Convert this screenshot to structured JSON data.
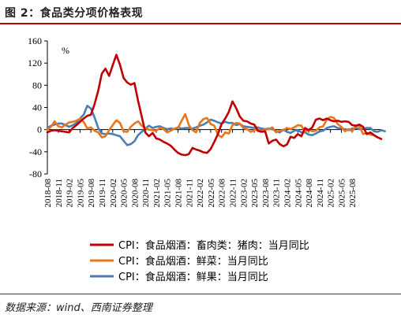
{
  "figure": {
    "title": "图 2：食品类分项价格表现",
    "source": "数据来源：wind、西南证券整理",
    "accent_color": "#c00000"
  },
  "chart_data": {
    "type": "line",
    "unit": "%",
    "ylim": [
      -80,
      160
    ],
    "yticks": [
      -80,
      -40,
      0,
      40,
      80,
      120,
      160
    ],
    "grid": false,
    "legend_position": "bottom",
    "x_tick_labels": [
      "2018-08",
      "2018-11",
      "2019-02",
      "2019-05",
      "2019-08",
      "2019-11",
      "2020-02",
      "2020-05",
      "2020-08",
      "2020-11",
      "2021-02",
      "2021-05",
      "2021-08",
      "2021-11",
      "2022-02",
      "2022-05",
      "2022-08",
      "2022-11",
      "2023-02",
      "2023-05",
      "2023-08",
      "2023-11",
      "2024-02",
      "2024-05",
      "2024-08",
      "2024-11",
      "2025-02",
      "2025-05",
      "2025-08"
    ],
    "series": [
      {
        "name": "CPI：食品烟酒：畜肉类：猪肉：当月同比",
        "color": "#c00000",
        "values": [
          -5,
          -2,
          -1,
          -2,
          -3,
          -4,
          -5,
          3,
          8,
          14,
          20,
          25,
          27,
          46,
          70,
          101,
          110,
          97,
          116,
          135,
          117,
          93,
          85,
          81,
          84,
          52,
          24,
          -5,
          -12,
          -6,
          -16,
          -18,
          -22,
          -25,
          -29,
          -36,
          -42,
          -45,
          -46,
          -44,
          -33,
          -36,
          -38,
          -41,
          -42,
          -35,
          -22,
          -8,
          10,
          20,
          32,
          51,
          39,
          24,
          16,
          15,
          11,
          9,
          -2,
          -4,
          -3,
          -25,
          -20,
          -18,
          -26,
          -30,
          -27,
          -13,
          -15,
          -8,
          -12,
          3,
          -1,
          4,
          18,
          20,
          17,
          20,
          17,
          15,
          16,
          14,
          15,
          14,
          8,
          7,
          9,
          5,
          -8,
          -5,
          -10,
          -14,
          -17
        ]
      },
      {
        "name": "CPI：食品烟酒：鲜菜：当月同比",
        "color": "#e8761b",
        "values": [
          0,
          5,
          15,
          6,
          4,
          9,
          13,
          14,
          16,
          20,
          14,
          2,
          4,
          -2,
          -5,
          -14,
          -12,
          -1,
          8,
          17,
          12,
          -3,
          -4,
          5,
          11,
          15,
          7,
          3,
          0,
          -1,
          -2,
          3,
          1,
          -5,
          -2,
          2,
          3,
          16,
          28,
          8,
          -1,
          -5,
          12,
          19,
          21,
          10,
          7,
          -9,
          -14,
          -5,
          -7,
          8,
          12,
          11,
          3,
          1,
          -4,
          -1,
          0,
          -2,
          0,
          1,
          4,
          -5,
          -2,
          -1,
          3,
          1,
          4,
          8,
          7,
          -4,
          0,
          -3,
          -2,
          4,
          6,
          18,
          23,
          21,
          10,
          5,
          -3,
          1,
          -3,
          7,
          6,
          -8,
          -6,
          -9,
          -10,
          -14
        ]
      },
      {
        "name": "CPI：食品烟酒：鲜果：当月同比",
        "color": "#4a7eb5",
        "values": [
          3,
          7,
          9,
          11,
          11,
          8,
          5,
          8,
          12,
          20,
          27,
          43,
          38,
          22,
          3,
          -7,
          -8,
          -7,
          -8,
          -10,
          -12,
          -20,
          -28,
          -26,
          -21,
          -10,
          -4,
          2,
          7,
          3,
          5,
          6,
          3,
          1,
          2,
          1,
          4,
          2,
          3,
          3,
          2,
          4,
          7,
          9,
          13,
          18,
          16,
          13,
          11,
          14,
          12,
          12,
          8,
          10,
          6,
          5,
          4,
          3,
          4,
          2,
          1,
          2,
          1,
          -3,
          -5,
          0,
          -4,
          -6,
          -2,
          -1,
          -5,
          -5,
          -9,
          -10,
          -7,
          -3,
          -2,
          3,
          5,
          6,
          3,
          2,
          1,
          -1,
          2,
          3,
          1,
          2,
          3,
          3,
          -3,
          -4,
          -1,
          -3
        ]
      }
    ]
  }
}
